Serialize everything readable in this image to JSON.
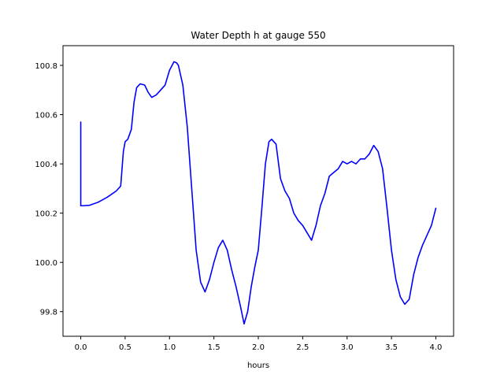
{
  "chart_data": {
    "type": "line",
    "title": "Water Depth h at gauge 550",
    "xlabel": "hours",
    "ylabel": "",
    "xlim": [
      -0.2,
      4.2
    ],
    "ylim": [
      99.7,
      100.88
    ],
    "x_ticks": [
      0.0,
      0.5,
      1.0,
      1.5,
      2.0,
      2.5,
      3.0,
      3.5,
      4.0
    ],
    "x_tick_labels": [
      "0.0",
      "0.5",
      "1.0",
      "1.5",
      "2.0",
      "2.5",
      "3.0",
      "3.5",
      "4.0"
    ],
    "y_ticks": [
      99.8,
      100.0,
      100.2,
      100.4,
      100.6,
      100.8
    ],
    "y_tick_labels": [
      "99.8",
      "100.0",
      "100.2",
      "100.4",
      "100.6",
      "100.8"
    ],
    "grid": false,
    "legend": "none",
    "series": [
      {
        "color": "#0000ff",
        "x": [
          0.0,
          0.0,
          0.02,
          0.1,
          0.2,
          0.3,
          0.4,
          0.45,
          0.48,
          0.5,
          0.53,
          0.57,
          0.6,
          0.63,
          0.67,
          0.72,
          0.76,
          0.8,
          0.85,
          0.9,
          0.95,
          1.0,
          1.05,
          1.08,
          1.1,
          1.15,
          1.2,
          1.25,
          1.3,
          1.35,
          1.4,
          1.45,
          1.5,
          1.55,
          1.6,
          1.65,
          1.7,
          1.75,
          1.8,
          1.84,
          1.88,
          1.92,
          1.96,
          2.0,
          2.04,
          2.08,
          2.12,
          2.15,
          2.2,
          2.25,
          2.3,
          2.35,
          2.4,
          2.45,
          2.5,
          2.55,
          2.6,
          2.65,
          2.7,
          2.75,
          2.8,
          2.85,
          2.9,
          2.95,
          3.0,
          3.05,
          3.1,
          3.15,
          3.2,
          3.25,
          3.3,
          3.35,
          3.4,
          3.45,
          3.5,
          3.55,
          3.6,
          3.65,
          3.7,
          3.75,
          3.8,
          3.85,
          3.9,
          3.95,
          4.0
        ],
        "y": [
          100.57,
          100.23,
          100.23,
          100.232,
          100.245,
          100.265,
          100.29,
          100.31,
          100.45,
          100.49,
          100.5,
          100.54,
          100.65,
          100.71,
          100.725,
          100.72,
          100.69,
          100.67,
          100.68,
          100.7,
          100.72,
          100.78,
          100.815,
          100.81,
          100.8,
          100.72,
          100.55,
          100.3,
          100.05,
          99.92,
          99.88,
          99.93,
          100.0,
          100.06,
          100.09,
          100.05,
          99.97,
          99.9,
          99.82,
          99.75,
          99.8,
          99.9,
          99.98,
          100.05,
          100.22,
          100.4,
          100.49,
          100.5,
          100.48,
          100.34,
          100.29,
          100.26,
          100.2,
          100.17,
          100.15,
          100.12,
          100.09,
          100.15,
          100.23,
          100.28,
          100.35,
          100.365,
          100.38,
          100.41,
          100.4,
          100.41,
          100.4,
          100.42,
          100.42,
          100.44,
          100.475,
          100.45,
          100.38,
          100.22,
          100.05,
          99.93,
          99.86,
          99.83,
          99.85,
          99.95,
          100.02,
          100.07,
          100.11,
          100.15,
          100.22
        ]
      }
    ]
  }
}
